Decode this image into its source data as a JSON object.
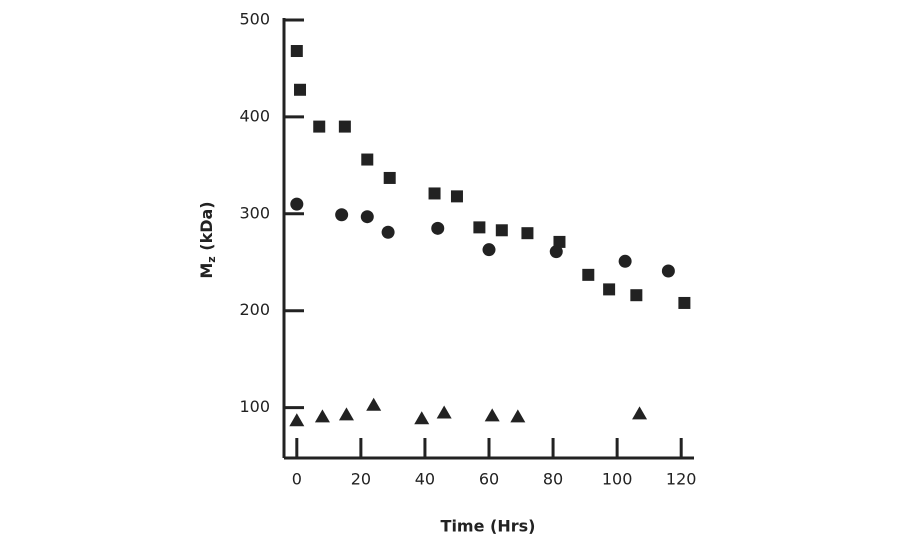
{
  "chart_data": {
    "type": "scatter",
    "x_label": "Time (Hrs)",
    "y_label": [
      "M",
      "z",
      " (kDa)"
    ],
    "xlim": [
      -4,
      124
    ],
    "xticks": [
      0,
      20,
      40,
      60,
      80,
      100,
      120
    ],
    "ylim": [
      48,
      500
    ],
    "yticks": [
      100,
      200,
      300,
      400,
      500
    ],
    "series": [
      {
        "marker": "square",
        "color": "#222222",
        "x": [
          0,
          1,
          7,
          15,
          22,
          29,
          43,
          50,
          57,
          64,
          72,
          82,
          91,
          97.5,
          106,
          121
        ],
        "values": [
          468,
          428,
          390,
          390,
          356,
          337,
          321,
          318,
          286,
          283,
          280,
          271,
          237,
          222,
          216,
          208
        ]
      },
      {
        "marker": "circle",
        "color": "#222222",
        "x": [
          0,
          14,
          22,
          28.5,
          44,
          60,
          81,
          102.5,
          116
        ],
        "values": [
          310,
          299,
          297,
          281,
          285,
          263,
          261,
          251,
          241
        ]
      },
      {
        "marker": "triangle",
        "color": "#222222",
        "x": [
          0,
          8,
          15.5,
          24,
          39,
          46,
          61,
          69,
          107
        ],
        "values": [
          87,
          91,
          93,
          103,
          89,
          95,
          92,
          91,
          94
        ]
      }
    ]
  }
}
